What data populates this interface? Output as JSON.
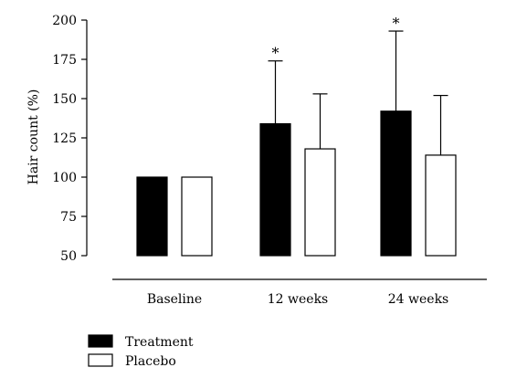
{
  "chart_data": {
    "type": "bar",
    "ylabel": "Hair count (%)",
    "xlabel": "",
    "ylim": [
      50,
      200
    ],
    "yticks": [
      50,
      75,
      100,
      125,
      150,
      175,
      200
    ],
    "ytick_labels": [
      "50",
      "75",
      "100",
      "125",
      "150",
      "175",
      "200"
    ],
    "categories": [
      "Baseline",
      "12 weeks",
      "24 weeks"
    ],
    "series": [
      {
        "name": "Treatment",
        "color": "#000000",
        "values": [
          100,
          134,
          142
        ],
        "error_upper": [
          null,
          174,
          193
        ],
        "significance": [
          "",
          "*",
          "*"
        ]
      },
      {
        "name": "Placebo",
        "color": "#ffffff",
        "values": [
          100,
          118,
          114
        ],
        "error_upper": [
          null,
          153,
          152
        ],
        "significance": [
          "",
          "",
          ""
        ]
      }
    ],
    "legend_placement": "bottom-left",
    "grid": false
  }
}
